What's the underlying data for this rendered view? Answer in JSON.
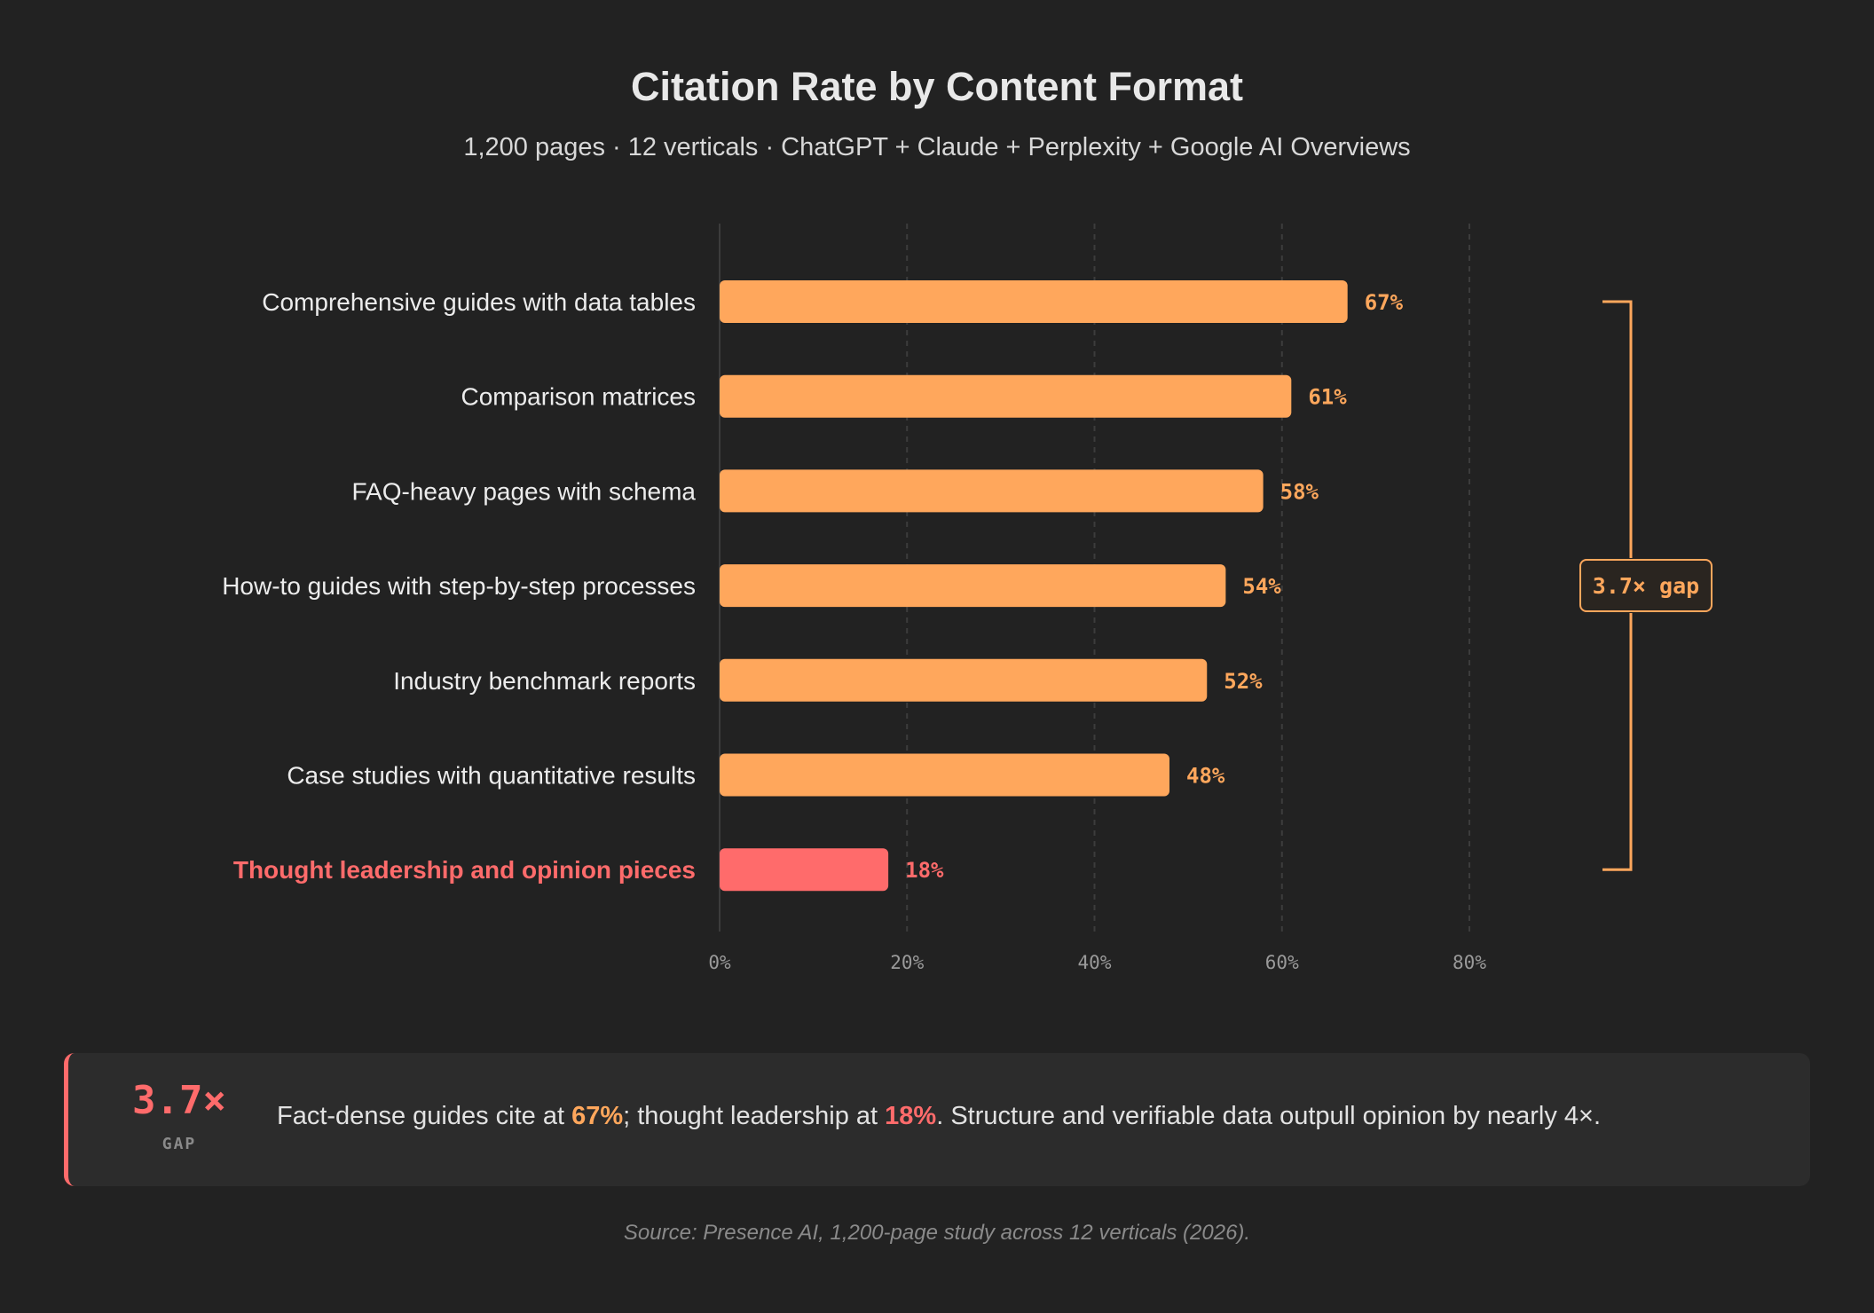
{
  "chart_data": {
    "type": "bar",
    "orientation": "horizontal",
    "title": "Citation Rate by Content Format",
    "subtitle": "1,200 pages · 12 verticals · ChatGPT + Claude + Perplexity + Google AI Overviews",
    "categories": [
      "Comprehensive guides with data tables",
      "Comparison matrices",
      "FAQ-heavy pages with schema",
      "How-to guides with step-by-step processes",
      "Industry benchmark reports",
      "Case studies with quantitative results",
      "Thought leadership and opinion pieces"
    ],
    "values": [
      67,
      61,
      58,
      54,
      52,
      48,
      18
    ],
    "value_labels": [
      "67%",
      "61%",
      "58%",
      "54%",
      "52%",
      "48%",
      "18%"
    ],
    "highlight_index": 6,
    "xlim": [
      0,
      80
    ],
    "xticks": [
      0,
      20,
      40,
      60,
      80
    ],
    "xtick_labels": [
      "0%",
      "20%",
      "40%",
      "60%",
      "80%"
    ],
    "grid": "vertical dashed",
    "colors": {
      "bar": "#ffa75c",
      "highlight": "#ff6b6b"
    },
    "annotation": {
      "text": "3.7× gap",
      "spans": "first to last bar"
    }
  },
  "insight": {
    "big": "3.7×",
    "small": "GAP",
    "text_1": "Fact-dense guides cite at ",
    "hl_1": "67%",
    "text_2": "; thought leadership at ",
    "hl_2": "18%",
    "text_3": ". Structure and verifiable data outpull opinion by nearly 4×."
  },
  "source": "Source: Presence AI, 1,200-page study across 12 verticals (2026)."
}
